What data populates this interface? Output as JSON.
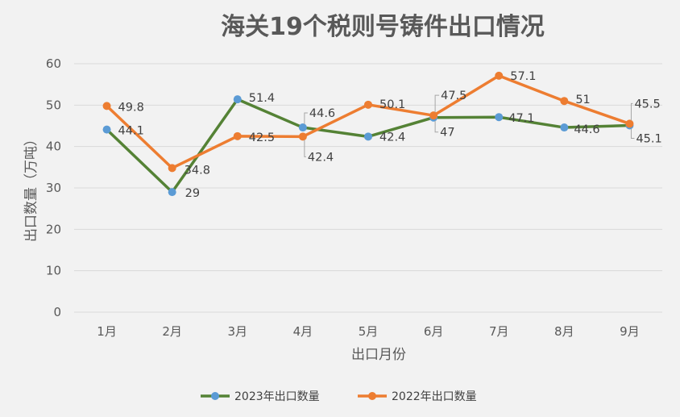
{
  "chart_data": {
    "type": "line",
    "title": "海关19个税则号铸件出口情况",
    "xlabel": "出口月份",
    "ylabel": "出口数量（万吨）",
    "categories": [
      "1月",
      "2月",
      "3月",
      "4月",
      "5月",
      "6月",
      "7月",
      "8月",
      "9月"
    ],
    "y_ticks": [
      0,
      10,
      20,
      30,
      40,
      50,
      60
    ],
    "ylim": [
      0,
      60
    ],
    "grid": true,
    "legend_position": "bottom",
    "series": [
      {
        "name": "2023年出口数量",
        "values": [
          44.1,
          29,
          51.4,
          44.6,
          42.4,
          47,
          47.1,
          44.6,
          45.1
        ],
        "labels": [
          "44.1",
          "29",
          "51.4",
          "44.6",
          "42.4",
          "47",
          "47.1",
          "44.6",
          "45.1"
        ],
        "line_color": "#548235",
        "marker_color": "#5b9bd5"
      },
      {
        "name": "2022年出口数量",
        "values": [
          49.8,
          34.8,
          42.5,
          42.4,
          50.1,
          47.5,
          57.1,
          51,
          45.5
        ],
        "labels": [
          "49.8",
          "34.8",
          "42.5",
          "42.4",
          "50.1",
          "47.5",
          "57.1",
          "51",
          "45.5"
        ],
        "line_color": "#ed7d31",
        "marker_color": "#ed7d31"
      }
    ]
  }
}
